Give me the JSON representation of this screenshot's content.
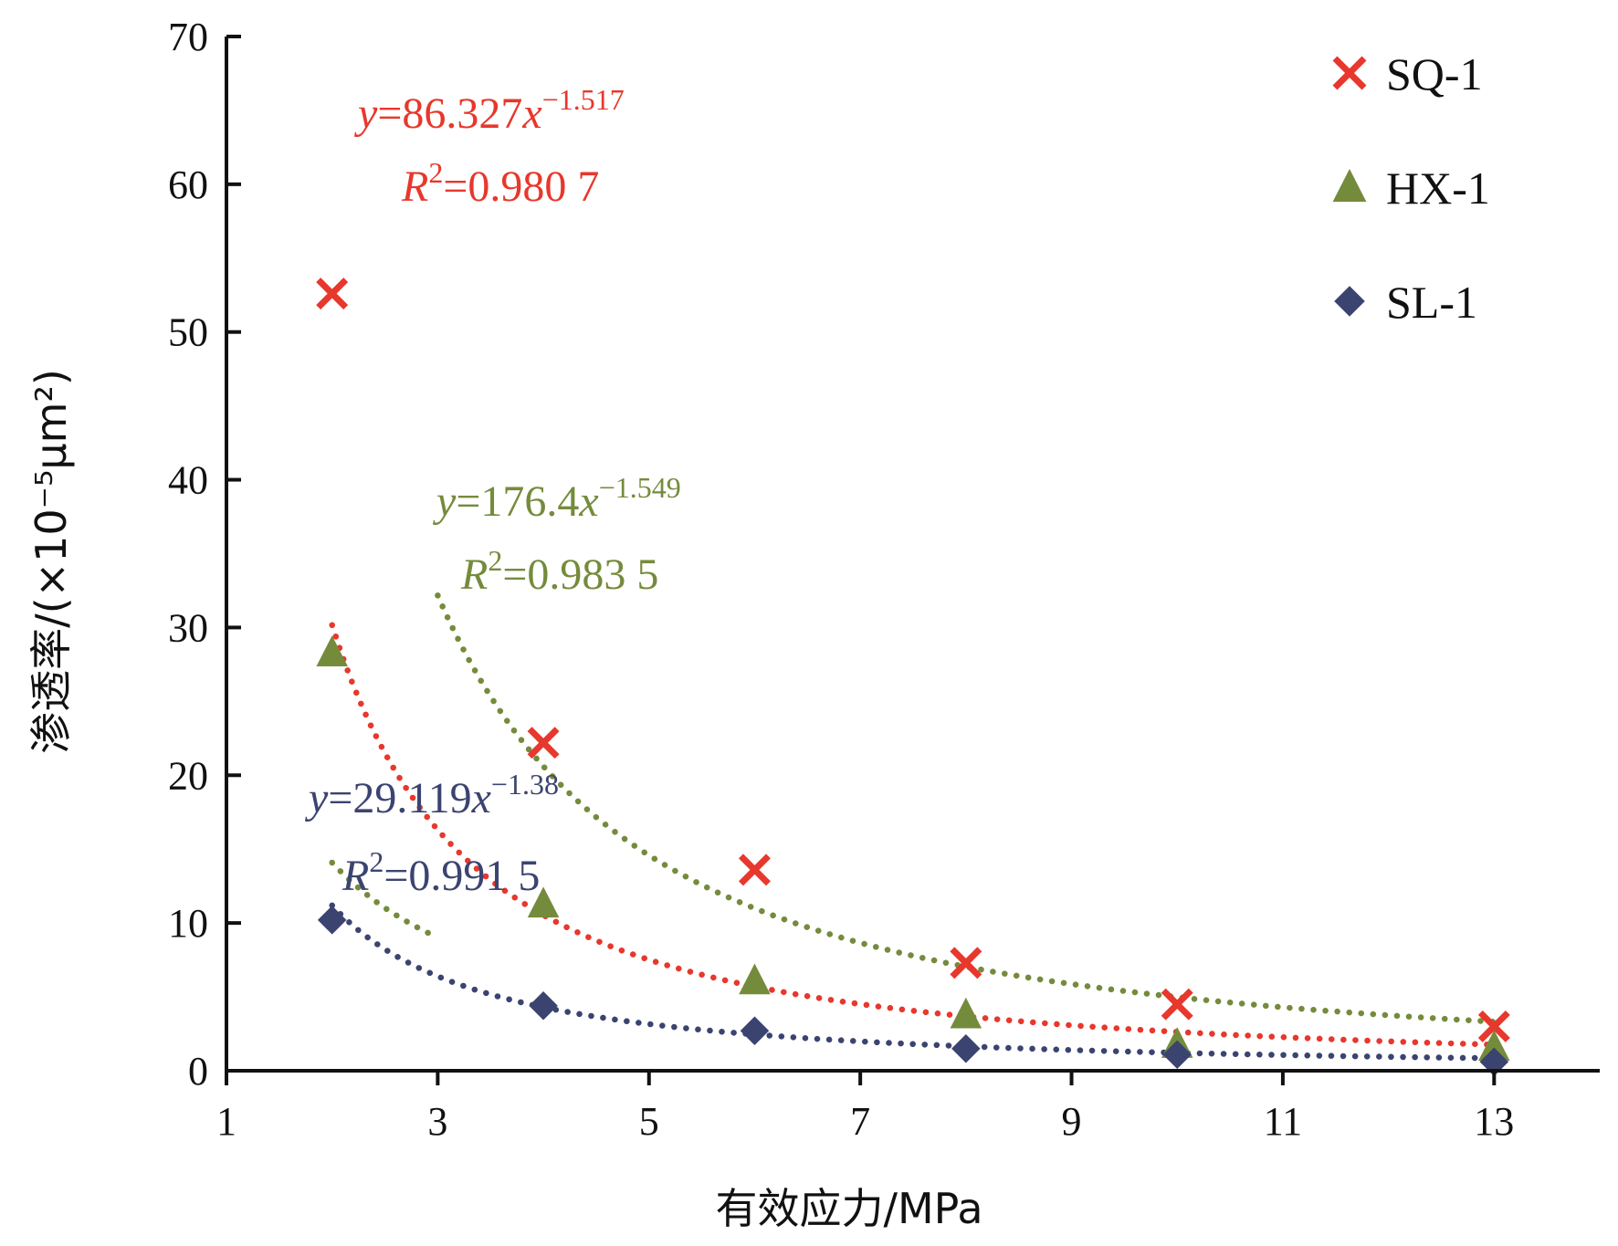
{
  "chart_data": {
    "type": "scatter",
    "xlabel": "有效应力/MPa",
    "ylabel": "渗透率/(×10⁻⁵μm²)",
    "xlim": [
      1,
      14
    ],
    "ylim": [
      0,
      70
    ],
    "x_ticks": [
      1,
      3,
      5,
      7,
      9,
      11,
      13
    ],
    "y_ticks": [
      0,
      10,
      20,
      30,
      40,
      50,
      60,
      70
    ],
    "grid": false,
    "legend_position": "top-right",
    "series": [
      {
        "name": "SQ-1",
        "marker": "x",
        "color": "#e8372c",
        "x": [
          2,
          4,
          6,
          8,
          10,
          13
        ],
        "y": [
          52.6,
          22.2,
          13.6,
          7.3,
          4.5,
          3.0
        ],
        "trendline": {
          "type": "power",
          "a": 86.327,
          "b": -1.517,
          "x_range": [
            2,
            13
          ]
        },
        "equation": {
          "prefix": "y",
          "body": "=86.327",
          "var": "x",
          "exp": "−1.517"
        },
        "r2": {
          "sym": "R",
          "sup": "2",
          "val": "=0.980 7"
        }
      },
      {
        "name": "HX-1",
        "marker": "triangle",
        "color": "#758b3c",
        "x": [
          2,
          4,
          6,
          8,
          10,
          13
        ],
        "y": [
          28.3,
          11.3,
          6.1,
          3.8,
          1.8,
          1.6
        ],
        "trendline": {
          "type": "power",
          "a": 176.4,
          "b": -1.549,
          "x_range": [
            3.0,
            13
          ]
        },
        "trendline_segment_2": {
          "type": "power",
          "a": 30.2,
          "b": -1.1,
          "x_range": [
            2,
            3.0
          ]
        },
        "equation": {
          "prefix": "y",
          "body": "=176.4",
          "var": "x",
          "exp": "−1.549"
        },
        "r2": {
          "sym": "R",
          "sup": "2",
          "val": "=0.983 5"
        }
      },
      {
        "name": "SL-1",
        "marker": "diamond",
        "color": "#3b4470",
        "x": [
          2,
          4,
          6,
          8,
          10,
          13
        ],
        "y": [
          10.2,
          4.4,
          2.7,
          1.5,
          1.1,
          0.6
        ],
        "trendline": {
          "type": "power",
          "a": 29.119,
          "b": -1.38,
          "x_range": [
            2,
            13
          ]
        },
        "equation": {
          "prefix": "y",
          "body": "=29.119",
          "var": "x",
          "exp": "−1.38"
        },
        "r2": {
          "sym": "R",
          "sup": "2",
          "val": "=0.991 5"
        }
      }
    ]
  }
}
